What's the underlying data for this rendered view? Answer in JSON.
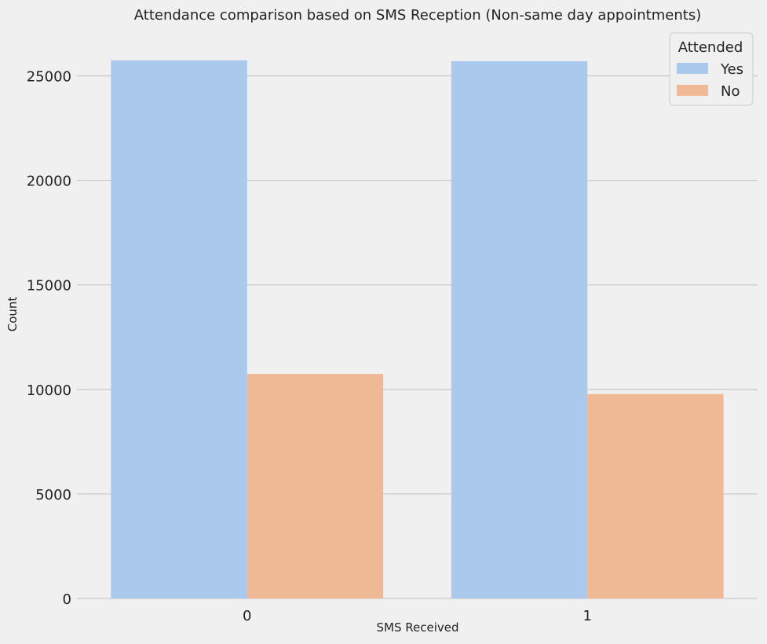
{
  "chart_data": {
    "type": "bar",
    "title": "Attendance comparison based on SMS Reception (Non-same day appointments)",
    "xlabel": "SMS Received",
    "ylabel": "Count",
    "categories": [
      "0",
      "1"
    ],
    "series": [
      {
        "name": "Yes",
        "values": [
          25740,
          25700
        ],
        "color": "#abc9ed"
      },
      {
        "name": "No",
        "values": [
          10740,
          9780
        ],
        "color": "#f0b995"
      }
    ],
    "ylim": [
      0,
      27200
    ],
    "yticks": [
      0,
      5000,
      10000,
      15000,
      20000,
      25000
    ],
    "grid": true,
    "legend": {
      "title": "Attended",
      "position": "top-right"
    }
  }
}
